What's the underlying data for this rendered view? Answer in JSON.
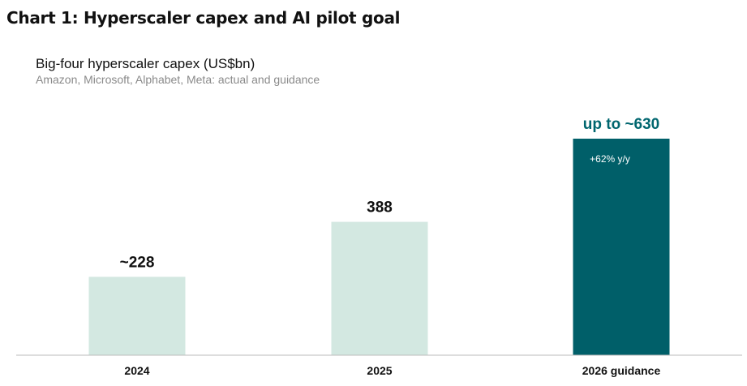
{
  "page_title": "Chart 1: Hyperscaler capex and AI pilot goal",
  "colors": {
    "bar_light": "#d3e8e1",
    "bar_dark": "#005f69",
    "label_dark": "#111111",
    "label_accent": "#00666f",
    "axis": "#bbbbbb"
  },
  "chart_data": {
    "type": "bar",
    "title": "Big-four hyperscaler capex (US$bn)",
    "subtitle": "Amazon, Microsoft, Alphabet, Meta: actual and guidance",
    "categories": [
      "2024",
      "2025",
      "2026 guidance"
    ],
    "values": [
      228,
      388,
      630
    ],
    "value_labels": [
      "~228",
      "388",
      "up to ~630"
    ],
    "annotations": [
      "",
      "",
      "+62% y/y"
    ],
    "highlight": [
      false,
      false,
      true
    ],
    "ylim": [
      0,
      630
    ],
    "grid": false,
    "legend": "none"
  }
}
